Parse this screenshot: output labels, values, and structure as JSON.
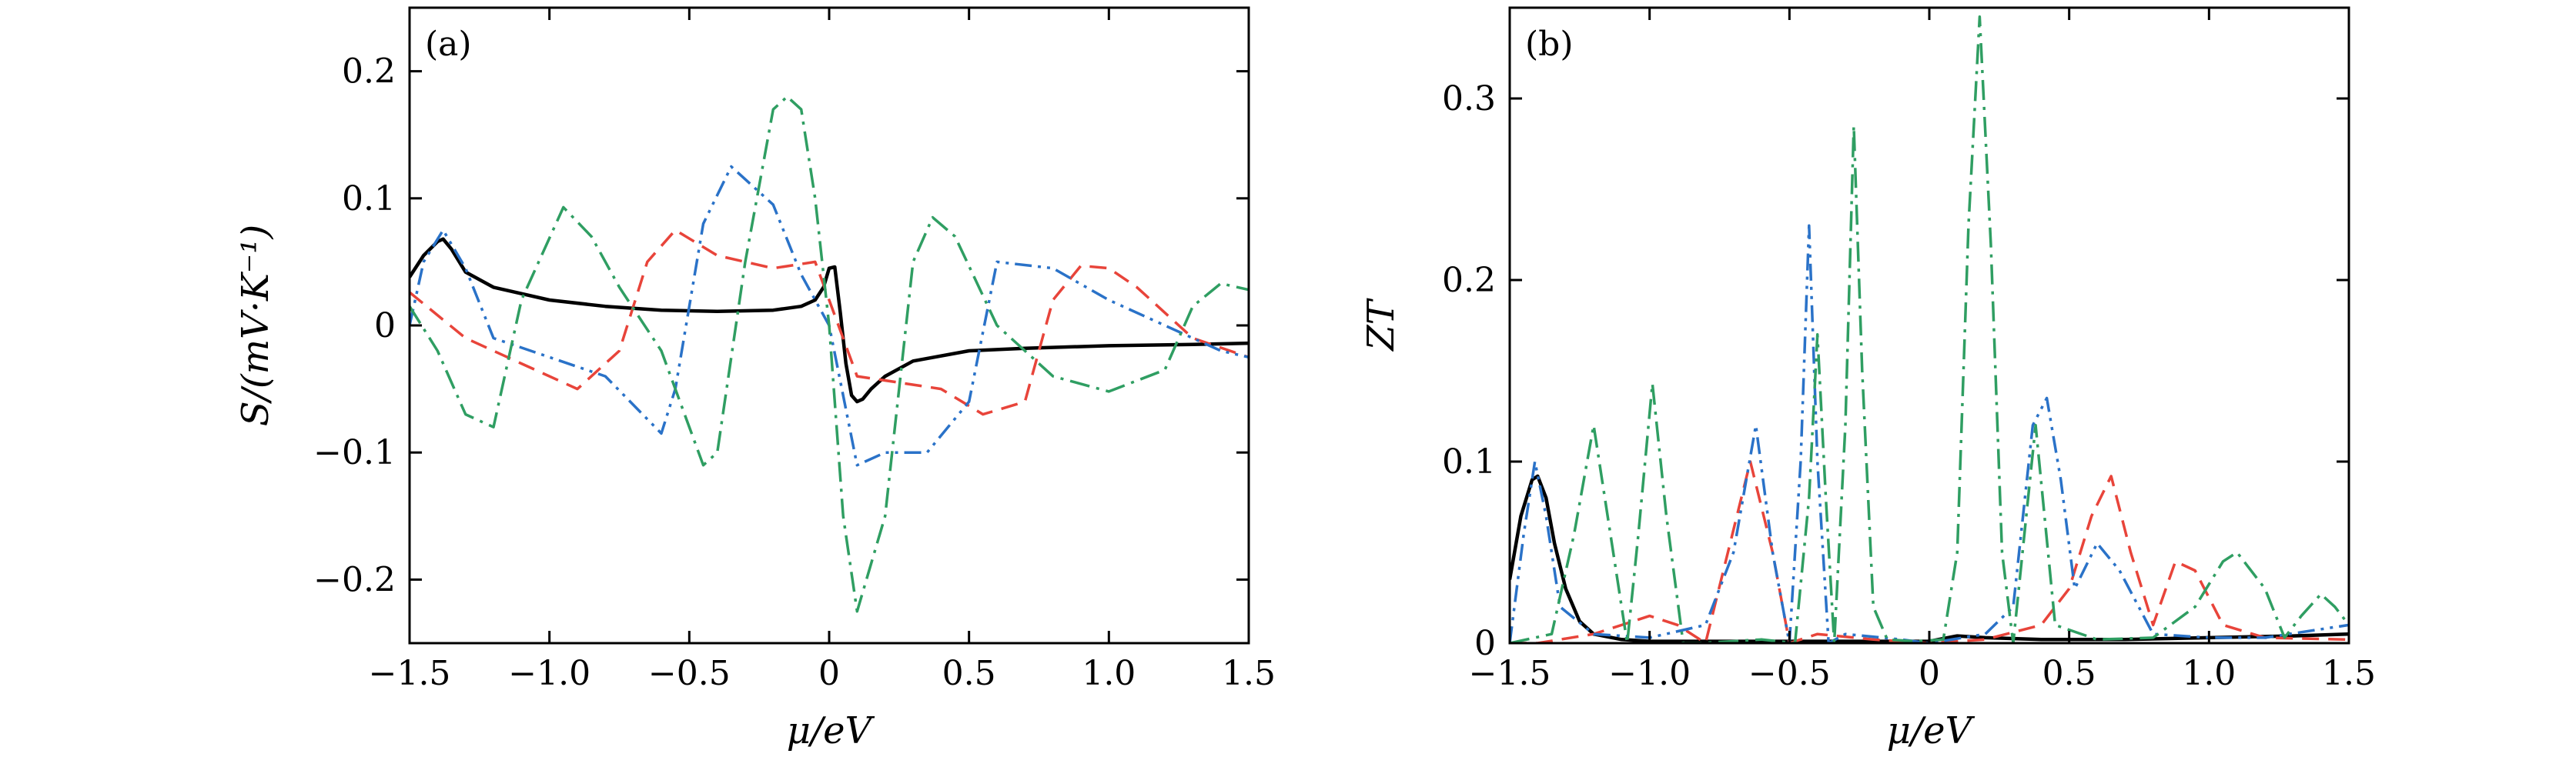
{
  "chart_data": [
    {
      "type": "line",
      "panel_label": "(a)",
      "xlabel": "μ/eV",
      "ylabel": "S/(mV·K⁻¹)",
      "xlim": [
        -1.5,
        1.5
      ],
      "ylim": [
        -0.25,
        0.25
      ],
      "xticks": [
        -1.5,
        -1.0,
        -0.5,
        0,
        0.5,
        1.0,
        1.5
      ],
      "xtick_labels": [
        "−1.5",
        "−1.0",
        "−0.5",
        "0",
        "0.5",
        "1.0",
        "1.5"
      ],
      "yticks": [
        -0.2,
        -0.1,
        0,
        0.1,
        0.2
      ],
      "ytick_labels": [
        "−0.2",
        "−0.1",
        "0",
        "0.1",
        "0.2"
      ],
      "series": [
        {
          "color": "#000000",
          "dash": "solid",
          "x": [
            -1.5,
            -1.45,
            -1.4,
            -1.38,
            -1.35,
            -1.3,
            -1.2,
            -1.0,
            -0.8,
            -0.6,
            -0.4,
            -0.2,
            -0.1,
            -0.05,
            -0.02,
            0.0,
            0.02,
            0.04,
            0.06,
            0.08,
            0.1,
            0.12,
            0.15,
            0.2,
            0.3,
            0.5,
            0.7,
            1.0,
            1.3,
            1.5
          ],
          "y": [
            0.038,
            0.055,
            0.066,
            0.068,
            0.06,
            0.042,
            0.03,
            0.02,
            0.015,
            0.012,
            0.011,
            0.012,
            0.015,
            0.02,
            0.03,
            0.045,
            0.046,
            0.01,
            -0.03,
            -0.055,
            -0.06,
            -0.058,
            -0.05,
            -0.04,
            -0.028,
            -0.02,
            -0.018,
            -0.016,
            -0.015,
            -0.014
          ]
        },
        {
          "color": "#e8443a",
          "dash": "dashed",
          "x": [
            -1.5,
            -1.3,
            -1.1,
            -0.9,
            -0.75,
            -0.65,
            -0.55,
            -0.4,
            -0.2,
            -0.05,
            0.1,
            0.25,
            0.4,
            0.55,
            0.7,
            0.8,
            0.9,
            1.0,
            1.1,
            1.3,
            1.5
          ],
          "y": [
            0.026,
            -0.01,
            -0.03,
            -0.05,
            -0.02,
            0.05,
            0.075,
            0.055,
            0.045,
            0.05,
            -0.04,
            -0.045,
            -0.05,
            -0.07,
            -0.06,
            0.02,
            0.047,
            0.045,
            0.03,
            -0.01,
            -0.025
          ]
        },
        {
          "color": "#2a72c8",
          "dash": "dash-dot-dot",
          "x": [
            -1.5,
            -1.45,
            -1.38,
            -1.3,
            -1.2,
            -1.0,
            -0.8,
            -0.6,
            -0.55,
            -0.45,
            -0.35,
            -0.2,
            -0.1,
            0.0,
            0.1,
            0.2,
            0.35,
            0.5,
            0.6,
            0.8,
            1.0,
            1.2,
            1.4,
            1.5
          ],
          "y": [
            0.0,
            0.05,
            0.075,
            0.045,
            -0.01,
            -0.025,
            -0.04,
            -0.085,
            -0.05,
            0.08,
            0.125,
            0.095,
            0.04,
            0.0,
            -0.11,
            -0.1,
            -0.1,
            -0.06,
            0.05,
            0.045,
            0.02,
            0.0,
            -0.02,
            -0.025
          ]
        },
        {
          "color": "#2f9e62",
          "dash": "dash-dot",
          "x": [
            -1.5,
            -1.4,
            -1.3,
            -1.2,
            -1.1,
            -0.95,
            -0.85,
            -0.75,
            -0.6,
            -0.45,
            -0.4,
            -0.3,
            -0.2,
            -0.15,
            -0.1,
            -0.05,
            0.0,
            0.05,
            0.1,
            0.2,
            0.3,
            0.37,
            0.45,
            0.6,
            0.8,
            1.0,
            1.2,
            1.3,
            1.4,
            1.5
          ],
          "y": [
            0.015,
            -0.02,
            -0.07,
            -0.08,
            0.02,
            0.093,
            0.07,
            0.03,
            -0.02,
            -0.11,
            -0.1,
            0.05,
            0.17,
            0.18,
            0.17,
            0.1,
            0.0,
            -0.15,
            -0.225,
            -0.15,
            0.05,
            0.085,
            0.07,
            0.0,
            -0.04,
            -0.052,
            -0.035,
            0.015,
            0.033,
            0.028
          ]
        }
      ]
    },
    {
      "type": "line",
      "panel_label": "(b)",
      "xlabel": "μ/eV",
      "ylabel": "ZT",
      "xlim": [
        -1.5,
        1.5
      ],
      "ylim": [
        0,
        0.35
      ],
      "xticks": [
        -1.5,
        -1.0,
        -0.5,
        0,
        0.5,
        1.0,
        1.5
      ],
      "xtick_labels": [
        "−1.5",
        "−1.0",
        "−0.5",
        "0",
        "0.5",
        "1.0",
        "1.5"
      ],
      "yticks": [
        0,
        0.1,
        0.2,
        0.3
      ],
      "ytick_labels": [
        "0",
        "0.1",
        "0.2",
        "0.3"
      ],
      "series": [
        {
          "color": "#000000",
          "dash": "solid",
          "x": [
            -1.5,
            -1.46,
            -1.42,
            -1.4,
            -1.37,
            -1.34,
            -1.3,
            -1.25,
            -1.2,
            -1.1,
            -1.0,
            -0.8,
            -0.5,
            -0.2,
            0.0,
            0.1,
            0.2,
            0.4,
            0.7,
            1.0,
            1.3,
            1.5
          ],
          "y": [
            0.035,
            0.07,
            0.09,
            0.092,
            0.08,
            0.055,
            0.03,
            0.012,
            0.005,
            0.002,
            0.001,
            0.001,
            0.001,
            0.001,
            0.001,
            0.004,
            0.003,
            0.002,
            0.002,
            0.003,
            0.004,
            0.005
          ]
        },
        {
          "color": "#e8443a",
          "dash": "dashed",
          "x": [
            -1.5,
            -1.4,
            -1.2,
            -1.0,
            -0.9,
            -0.8,
            -0.72,
            -0.64,
            -0.56,
            -0.5,
            -0.4,
            -0.2,
            0.0,
            0.2,
            0.4,
            0.5,
            0.58,
            0.65,
            0.72,
            0.8,
            0.88,
            0.95,
            1.05,
            1.2,
            1.5
          ],
          "y": [
            0.0,
            0.0,
            0.005,
            0.015,
            0.01,
            0.0,
            0.05,
            0.1,
            0.05,
            0.0,
            0.005,
            0.002,
            0.0,
            0.002,
            0.01,
            0.03,
            0.07,
            0.092,
            0.05,
            0.01,
            0.045,
            0.04,
            0.01,
            0.003,
            0.002
          ]
        },
        {
          "color": "#2a72c8",
          "dash": "dash-dot-dot",
          "x": [
            -1.5,
            -1.45,
            -1.41,
            -1.37,
            -1.32,
            -1.2,
            -1.0,
            -0.8,
            -0.7,
            -0.62,
            -0.56,
            -0.5,
            -0.46,
            -0.43,
            -0.4,
            -0.36,
            -0.3,
            -0.1,
            0.0,
            0.2,
            0.3,
            0.37,
            0.42,
            0.47,
            0.52,
            0.6,
            0.68,
            0.8,
            1.0,
            1.2,
            1.5
          ],
          "y": [
            0.0,
            0.06,
            0.1,
            0.07,
            0.02,
            0.005,
            0.003,
            0.01,
            0.05,
            0.12,
            0.05,
            0.0,
            0.1,
            0.23,
            0.1,
            0.0,
            0.005,
            0.002,
            0.0,
            0.005,
            0.02,
            0.12,
            0.135,
            0.09,
            0.03,
            0.055,
            0.04,
            0.005,
            0.003,
            0.003,
            0.01
          ]
        },
        {
          "color": "#2f9e62",
          "dash": "dash-dot",
          "x": [
            -1.5,
            -1.35,
            -1.27,
            -1.2,
            -1.14,
            -1.08,
            -1.04,
            -0.99,
            -0.94,
            -0.88,
            -0.82,
            -0.6,
            -0.48,
            -0.43,
            -0.4,
            -0.37,
            -0.34,
            -0.3,
            -0.27,
            -0.24,
            -0.2,
            -0.15,
            -0.05,
            0.05,
            0.1,
            0.14,
            0.18,
            0.22,
            0.26,
            0.3,
            0.34,
            0.38,
            0.45,
            0.6,
            0.8,
            0.95,
            1.05,
            1.1,
            1.2,
            1.27,
            1.33,
            1.4,
            1.45,
            1.5
          ],
          "y": [
            0.0,
            0.005,
            0.06,
            0.12,
            0.06,
            0.0,
            0.06,
            0.143,
            0.07,
            0.0,
            0.0,
            0.002,
            0.0,
            0.08,
            0.17,
            0.08,
            0.0,
            0.12,
            0.285,
            0.15,
            0.02,
            0.002,
            0.001,
            0.002,
            0.05,
            0.23,
            0.345,
            0.22,
            0.05,
            0.0,
            0.06,
            0.12,
            0.01,
            0.002,
            0.003,
            0.02,
            0.045,
            0.05,
            0.03,
            0.003,
            0.015,
            0.027,
            0.02,
            0.01
          ]
        }
      ]
    }
  ]
}
